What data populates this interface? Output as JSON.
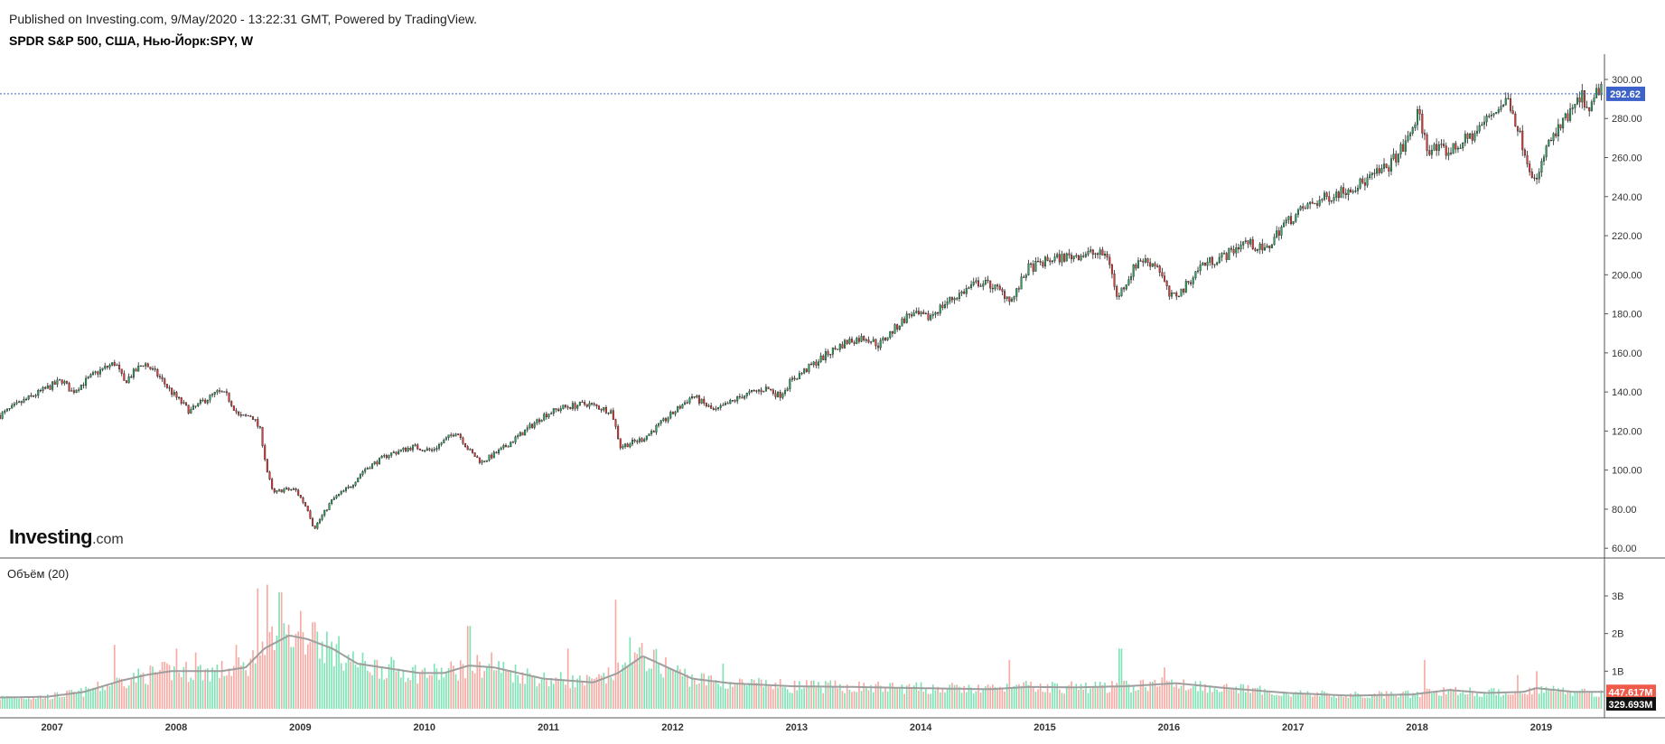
{
  "header": {
    "published": "Published on Investing.com, 9/May/2020 - 13:22:31 GMT, Powered by TradingView.",
    "symbol": "SPDR S&P 500, США, Нью-Йорк:SPY, W"
  },
  "logo": {
    "main": "Investing",
    "suffix": ".com"
  },
  "colors": {
    "up": "#26a65b",
    "down": "#e53935",
    "vol_up": "#7de3b5",
    "vol_down": "#f7a9a2",
    "ma": "#9e9e9e",
    "price_line": "#3d62c9",
    "axis": "#555555"
  },
  "chart_data": [
    {
      "type": "candlestick",
      "interval": "W",
      "title": "SPDR S&P 500, США, Нью-Йорк:SPY, W",
      "ylim": [
        55,
        312
      ],
      "y_ticks": [
        "60.00",
        "80.00",
        "100.00",
        "120.00",
        "140.00",
        "160.00",
        "180.00",
        "200.00",
        "220.00",
        "240.00",
        "260.00",
        "280.00",
        "300.00"
      ],
      "x_ticks": [
        "2007",
        "2008",
        "2009",
        "2010",
        "2011",
        "2012",
        "2013",
        "2014",
        "2015",
        "2016",
        "2017",
        "2018",
        "2019"
      ],
      "x_range": [
        2006.62,
        2019.55
      ],
      "last_price": "292.62",
      "close_anchors": [
        [
          2006.62,
          128
        ],
        [
          2006.8,
          135
        ],
        [
          2007.0,
          142
        ],
        [
          2007.12,
          146
        ],
        [
          2007.2,
          140
        ],
        [
          2007.4,
          150
        ],
        [
          2007.55,
          155
        ],
        [
          2007.62,
          145
        ],
        [
          2007.78,
          155
        ],
        [
          2007.9,
          148
        ],
        [
          2008.0,
          140
        ],
        [
          2008.15,
          130
        ],
        [
          2008.25,
          135
        ],
        [
          2008.38,
          140
        ],
        [
          2008.45,
          138
        ],
        [
          2008.55,
          127
        ],
        [
          2008.65,
          128
        ],
        [
          2008.72,
          120
        ],
        [
          2008.77,
          100
        ],
        [
          2008.82,
          88
        ],
        [
          2008.9,
          90
        ],
        [
          2009.0,
          90
        ],
        [
          2009.1,
          80
        ],
        [
          2009.15,
          70
        ],
        [
          2009.3,
          85
        ],
        [
          2009.45,
          92
        ],
        [
          2009.55,
          100
        ],
        [
          2009.75,
          108
        ],
        [
          2009.95,
          112
        ],
        [
          2010.1,
          110
        ],
        [
          2010.3,
          120
        ],
        [
          2010.4,
          110
        ],
        [
          2010.5,
          104
        ],
        [
          2010.65,
          110
        ],
        [
          2010.85,
          120
        ],
        [
          2011.0,
          128
        ],
        [
          2011.15,
          132
        ],
        [
          2011.35,
          134
        ],
        [
          2011.55,
          130
        ],
        [
          2011.62,
          112
        ],
        [
          2011.8,
          116
        ],
        [
          2011.95,
          124
        ],
        [
          2012.2,
          138
        ],
        [
          2012.38,
          130
        ],
        [
          2012.6,
          138
        ],
        [
          2012.8,
          142
        ],
        [
          2012.9,
          138
        ],
        [
          2013.0,
          146
        ],
        [
          2013.3,
          160
        ],
        [
          2013.45,
          166
        ],
        [
          2013.6,
          168
        ],
        [
          2013.7,
          164
        ],
        [
          2013.95,
          180
        ],
        [
          2014.1,
          178
        ],
        [
          2014.25,
          186
        ],
        [
          2014.5,
          196
        ],
        [
          2014.6,
          195
        ],
        [
          2014.78,
          187
        ],
        [
          2014.9,
          203
        ],
        [
          2015.1,
          208
        ],
        [
          2015.4,
          211
        ],
        [
          2015.55,
          210
        ],
        [
          2015.62,
          188
        ],
        [
          2015.8,
          208
        ],
        [
          2015.95,
          205
        ],
        [
          2016.05,
          188
        ],
        [
          2016.15,
          192
        ],
        [
          2016.3,
          205
        ],
        [
          2016.5,
          210
        ],
        [
          2016.65,
          217
        ],
        [
          2016.82,
          212
        ],
        [
          2016.95,
          225
        ],
        [
          2017.15,
          235
        ],
        [
          2017.4,
          242
        ],
        [
          2017.6,
          247
        ],
        [
          2017.8,
          255
        ],
        [
          2017.95,
          267
        ],
        [
          2018.05,
          283
        ],
        [
          2018.12,
          265
        ],
        [
          2018.3,
          263
        ],
        [
          2018.5,
          272
        ],
        [
          2018.65,
          283
        ],
        [
          2018.78,
          290
        ],
        [
          2018.85,
          275
        ],
        [
          2018.95,
          255
        ],
        [
          2019.0,
          246
        ],
        [
          2019.08,
          265
        ],
        [
          2019.3,
          285
        ],
        [
          2019.38,
          292
        ],
        [
          2019.42,
          280
        ],
        [
          2019.48,
          292
        ],
        [
          2019.55,
          300
        ]
      ],
      "series": [
        {
          "name": "SPY"
        }
      ]
    },
    {
      "type": "bar",
      "title": "Объём (20)",
      "ylim": [
        0,
        3.6
      ],
      "y_ticks": [
        "1B",
        "2B",
        "3B"
      ],
      "moving_average_period": 20,
      "last_volume": "329.693M",
      "last_ma": "447.617M",
      "ma_anchors": [
        [
          2006.62,
          0.3
        ],
        [
          2007.0,
          0.32
        ],
        [
          2007.3,
          0.45
        ],
        [
          2007.6,
          0.75
        ],
        [
          2007.8,
          0.9
        ],
        [
          2008.0,
          1.0
        ],
        [
          2008.4,
          1.0
        ],
        [
          2008.6,
          1.1
        ],
        [
          2008.75,
          1.6
        ],
        [
          2008.95,
          1.95
        ],
        [
          2009.1,
          1.85
        ],
        [
          2009.3,
          1.6
        ],
        [
          2009.5,
          1.2
        ],
        [
          2009.8,
          1.05
        ],
        [
          2010.0,
          0.95
        ],
        [
          2010.2,
          0.95
        ],
        [
          2010.4,
          1.15
        ],
        [
          2010.6,
          1.1
        ],
        [
          2010.8,
          0.95
        ],
        [
          2011.0,
          0.8
        ],
        [
          2011.4,
          0.7
        ],
        [
          2011.6,
          0.95
        ],
        [
          2011.8,
          1.4
        ],
        [
          2012.0,
          1.1
        ],
        [
          2012.2,
          0.8
        ],
        [
          2012.5,
          0.68
        ],
        [
          2013.0,
          0.6
        ],
        [
          2013.5,
          0.58
        ],
        [
          2014.0,
          0.55
        ],
        [
          2014.6,
          0.52
        ],
        [
          2014.9,
          0.58
        ],
        [
          2015.3,
          0.57
        ],
        [
          2015.7,
          0.6
        ],
        [
          2016.1,
          0.68
        ],
        [
          2016.5,
          0.55
        ],
        [
          2017.0,
          0.42
        ],
        [
          2017.5,
          0.35
        ],
        [
          2018.0,
          0.38
        ],
        [
          2018.3,
          0.5
        ],
        [
          2018.6,
          0.42
        ],
        [
          2018.9,
          0.45
        ],
        [
          2019.0,
          0.55
        ],
        [
          2019.3,
          0.45
        ],
        [
          2019.55,
          0.45
        ]
      ],
      "spikes": [
        [
          2007.55,
          1.7
        ],
        [
          2008.05,
          1.6
        ],
        [
          2008.2,
          1.5
        ],
        [
          2008.52,
          1.7
        ],
        [
          2008.7,
          3.2
        ],
        [
          2008.78,
          3.3
        ],
        [
          2008.88,
          3.1
        ],
        [
          2009.05,
          2.6
        ],
        [
          2009.15,
          2.3
        ],
        [
          2010.4,
          2.2
        ],
        [
          2010.58,
          1.5
        ],
        [
          2011.2,
          1.6
        ],
        [
          2011.58,
          2.9
        ],
        [
          2011.7,
          1.9
        ],
        [
          2012.45,
          1.2
        ],
        [
          2014.75,
          1.3
        ],
        [
          2015.65,
          1.6
        ],
        [
          2016.0,
          1.1
        ],
        [
          2018.1,
          1.3
        ],
        [
          2018.85,
          0.9
        ],
        [
          2019.0,
          1.0
        ]
      ]
    }
  ]
}
